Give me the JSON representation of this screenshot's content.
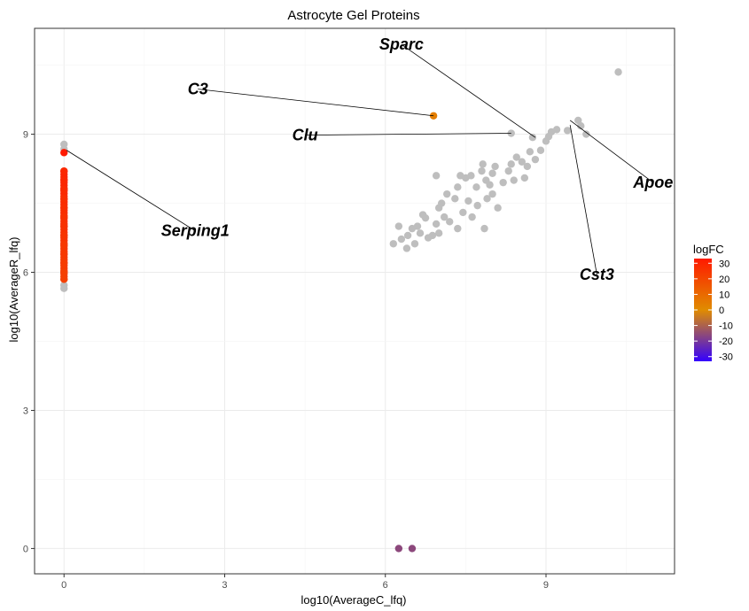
{
  "chart_data": {
    "type": "scatter",
    "title": "Astrocyte Gel Proteins",
    "xlabel": "log10(AverageC_lfq)",
    "ylabel": "log10(AverageR_lfq)",
    "xlim": [
      -0.55,
      11.4
    ],
    "ylim": [
      -0.55,
      11.3
    ],
    "xticks": [
      0,
      3,
      6,
      9
    ],
    "yticks": [
      0,
      3,
      6,
      9
    ],
    "grid": true,
    "legend": {
      "title": "logFC",
      "position": "right",
      "ticks": [
        30,
        20,
        10,
        0,
        -10,
        -20,
        -30
      ],
      "range": [
        -33,
        33
      ],
      "colors": {
        "low": "#3300ff",
        "mid": "#e08c00",
        "high": "#ff1a00"
      }
    },
    "points_grey": [
      [
        0,
        8.78
      ],
      [
        0,
        8.68
      ],
      [
        0,
        5.65
      ],
      [
        0,
        5.72
      ],
      [
        6.15,
        6.62
      ],
      [
        6.25,
        7.0
      ],
      [
        6.3,
        6.72
      ],
      [
        6.4,
        6.52
      ],
      [
        6.42,
        6.8
      ],
      [
        6.5,
        6.95
      ],
      [
        6.55,
        6.62
      ],
      [
        6.6,
        7.0
      ],
      [
        6.65,
        6.85
      ],
      [
        6.7,
        7.25
      ],
      [
        6.75,
        7.18
      ],
      [
        6.8,
        6.75
      ],
      [
        6.88,
        6.8
      ],
      [
        6.95,
        7.05
      ],
      [
        7.0,
        6.85
      ],
      [
        7.0,
        7.4
      ],
      [
        6.95,
        8.1
      ],
      [
        7.05,
        7.5
      ],
      [
        7.1,
        7.2
      ],
      [
        7.15,
        7.7
      ],
      [
        7.2,
        7.1
      ],
      [
        7.3,
        7.6
      ],
      [
        7.35,
        7.85
      ],
      [
        7.35,
        6.95
      ],
      [
        7.4,
        8.1
      ],
      [
        7.45,
        7.3
      ],
      [
        7.5,
        8.05
      ],
      [
        7.55,
        7.55
      ],
      [
        7.6,
        8.1
      ],
      [
        7.62,
        7.2
      ],
      [
        7.7,
        7.85
      ],
      [
        7.72,
        7.45
      ],
      [
        7.8,
        8.2
      ],
      [
        7.82,
        8.35
      ],
      [
        7.85,
        6.95
      ],
      [
        7.88,
        8.0
      ],
      [
        7.9,
        7.6
      ],
      [
        7.95,
        7.9
      ],
      [
        8.0,
        7.7
      ],
      [
        8.05,
        8.3
      ],
      [
        8.0,
        8.15
      ],
      [
        8.1,
        7.4
      ],
      [
        8.2,
        7.95
      ],
      [
        8.3,
        8.2
      ],
      [
        8.35,
        8.35
      ],
      [
        8.4,
        8.0
      ],
      [
        8.45,
        8.5
      ],
      [
        8.55,
        8.4
      ],
      [
        8.6,
        8.05
      ],
      [
        8.65,
        8.3
      ],
      [
        8.7,
        8.62
      ],
      [
        8.8,
        8.45
      ],
      [
        8.9,
        8.65
      ],
      [
        9.0,
        8.85
      ],
      [
        9.05,
        8.95
      ],
      [
        9.1,
        9.05
      ],
      [
        9.2,
        9.1
      ],
      [
        9.4,
        9.08
      ],
      [
        9.6,
        9.3
      ],
      [
        9.65,
        9.18
      ],
      [
        9.75,
        9.0
      ],
      [
        10.35,
        10.35
      ],
      [
        8.35,
        9.02
      ],
      [
        8.75,
        8.93
      ]
    ],
    "points_colored": [
      {
        "x": 6.9,
        "y": 9.4,
        "logFC": 4
      },
      {
        "x": 6.25,
        "y": 0,
        "logFC": -16
      },
      {
        "x": 6.5,
        "y": 0,
        "logFC": -16
      },
      {
        "x": 0,
        "y": 8.6,
        "logFC": 33
      },
      {
        "x": 0,
        "y": 8.2,
        "logFC": 29
      },
      {
        "x": 0,
        "y": 8.0,
        "logFC": 29
      },
      {
        "x": 0,
        "y": 7.8,
        "logFC": 28
      },
      {
        "x": 0,
        "y": 7.6,
        "logFC": 27
      },
      {
        "x": 0,
        "y": 7.4,
        "logFC": 27
      },
      {
        "x": 0,
        "y": 7.2,
        "logFC": 26
      },
      {
        "x": 0,
        "y": 7.0,
        "logFC": 26
      },
      {
        "x": 0,
        "y": 6.8,
        "logFC": 25
      },
      {
        "x": 0,
        "y": 6.6,
        "logFC": 24
      },
      {
        "x": 0,
        "y": 6.4,
        "logFC": 24
      },
      {
        "x": 0,
        "y": 6.2,
        "logFC": 23
      },
      {
        "x": 0,
        "y": 6.0,
        "logFC": 22
      },
      {
        "x": 0,
        "y": 5.85,
        "logFC": 22
      }
    ],
    "annotations": [
      {
        "label": "Sparc",
        "x": 8.8,
        "y": 8.93,
        "lx": 6.3,
        "ly": 10.95
      },
      {
        "label": "C3",
        "x": 6.9,
        "y": 9.4,
        "lx": 2.5,
        "ly": 9.98
      },
      {
        "label": "Clu",
        "x": 8.35,
        "y": 9.02,
        "lx": 4.5,
        "ly": 8.98
      },
      {
        "label": "Apoe",
        "x": 9.45,
        "y": 9.3,
        "lx": 11.0,
        "ly": 7.95
      },
      {
        "label": "Cst3",
        "x": 9.45,
        "y": 9.2,
        "lx": 9.95,
        "ly": 5.95
      },
      {
        "label": "Serping1",
        "x": 0.05,
        "y": 8.65,
        "lx": 2.45,
        "ly": 6.9
      }
    ]
  }
}
